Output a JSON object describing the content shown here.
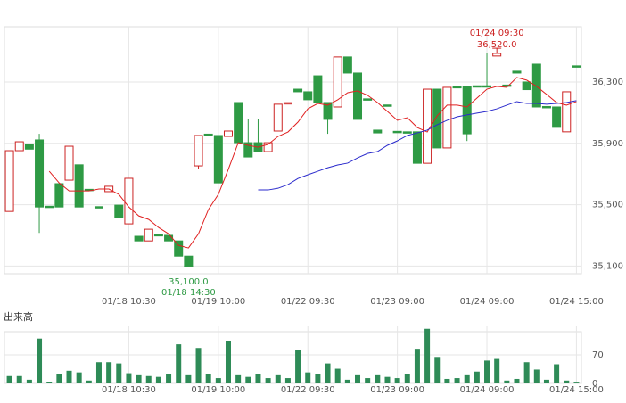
{
  "chart_data": [
    {
      "type": "candlestick",
      "categories": [
        null,
        null,
        null,
        null,
        null,
        null,
        null,
        null,
        null,
        null,
        null,
        null,
        "01/18 10:30",
        null,
        null,
        null,
        null,
        null,
        null,
        null,
        null,
        "01/19 10:00",
        null,
        null,
        null,
        null,
        null,
        null,
        null,
        null,
        "01/22 09:30",
        null,
        null,
        null,
        null,
        null,
        null,
        null,
        null,
        "01/23 09:00",
        null,
        null,
        null,
        null,
        null,
        null,
        null,
        null,
        "01/24 09:00",
        null,
        null,
        null,
        null,
        null,
        null,
        null,
        null,
        "01/24 15:00"
      ],
      "open": [
        35456,
        35852,
        35890,
        35922,
        35490,
        35637,
        35660,
        35760,
        35600,
        35487,
        35585,
        35497,
        35375,
        35294,
        35264,
        35305,
        35300,
        35264,
        35165,
        35753,
        35960,
        35951,
        35945,
        36166,
        35904,
        35904,
        35846,
        35980,
        36160,
        36253,
        36236,
        36340,
        36166,
        36137,
        36463,
        36358,
        36190,
        35986,
        36150,
        35978,
        35975,
        35975,
        35770,
        36253,
        35870,
        36270,
        36271,
        36275,
        36275,
        36469,
        36280,
        36370,
        36300,
        36416,
        36140,
        36137,
        35975,
        36405
      ],
      "high": [
        35852,
        35910,
        35890,
        35962,
        35490,
        35637,
        35881,
        35760,
        35600,
        35487,
        35620,
        35497,
        35672,
        35294,
        35340,
        35305,
        35300,
        35264,
        35165,
        35951,
        35960,
        35951,
        35980,
        36166,
        36060,
        36060,
        35904,
        36155,
        36165,
        36253,
        36236,
        36340,
        36166,
        36463,
        36463,
        36358,
        36190,
        35986,
        36150,
        35978,
        35975,
        35975,
        36253,
        36253,
        36265,
        36270,
        36271,
        36275,
        36486,
        36520,
        36280,
        36370,
        36300,
        36416,
        36140,
        36137,
        36236,
        36405
      ],
      "low": [
        35456,
        35852,
        35862,
        35316,
        35485,
        35485,
        35660,
        35485,
        35595,
        35480,
        35585,
        35415,
        35375,
        35264,
        35264,
        35300,
        35264,
        35165,
        35100,
        35730,
        35955,
        35642,
        35945,
        35904,
        35811,
        35846,
        35846,
        35980,
        36160,
        36236,
        36184,
        36166,
        35962,
        36137,
        36358,
        36056,
        36184,
        35968,
        36145,
        35972,
        35970,
        35770,
        35770,
        35870,
        35870,
        36265,
        35915,
        36270,
        36270,
        36469,
        36275,
        36358,
        36250,
        36137,
        36135,
        36004,
        35975,
        36400
      ],
      "close": [
        35852,
        35910,
        35862,
        35485,
        35485,
        35485,
        35881,
        35485,
        35595,
        35480,
        35620,
        35415,
        35672,
        35264,
        35340,
        35300,
        35264,
        35165,
        35100,
        35951,
        35955,
        35642,
        35980,
        35904,
        35811,
        35846,
        35904,
        36155,
        36165,
        36236,
        36184,
        36166,
        36056,
        36463,
        36358,
        36056,
        36184,
        35968,
        36145,
        35972,
        35970,
        35770,
        36253,
        35870,
        36265,
        36265,
        35962,
        36270,
        36270,
        36486,
        36275,
        36358,
        36250,
        36137,
        36135,
        36004,
        36236,
        36400
      ],
      "up_color": "#cc2222",
      "down_color": "#2e9a44",
      "lines": [
        {
          "color": "#e02020",
          "values": [
            null,
            null,
            null,
            null,
            35718,
            35642,
            35590,
            35590,
            35590,
            35602,
            35602,
            35567,
            35485,
            35427,
            35404,
            35351,
            35310,
            35235,
            35218,
            35310,
            35468,
            35567,
            35730,
            35904,
            35887,
            35875,
            35893,
            35945,
            35974,
            36038,
            36125,
            36160,
            36149,
            36184,
            36230,
            36242,
            36213,
            36166,
            36108,
            36050,
            36067,
            36003,
            35974,
            36079,
            36149,
            36149,
            36137,
            36195,
            36253,
            36271,
            36265,
            36329,
            36312,
            36271,
            36219,
            36166,
            36149,
            36172
          ]
        },
        {
          "color": "#2a2acc",
          "values": [
            null,
            null,
            null,
            null,
            null,
            null,
            null,
            null,
            null,
            null,
            null,
            null,
            null,
            null,
            null,
            null,
            null,
            null,
            null,
            null,
            null,
            null,
            null,
            null,
            null,
            35596,
            35596,
            35607,
            35631,
            35671,
            35695,
            35718,
            35741,
            35759,
            35771,
            35805,
            35834,
            35846,
            35887,
            35916,
            35951,
            35968,
            35986,
            36021,
            36050,
            36073,
            36085,
            36097,
            36108,
            36125,
            36149,
            36172,
            36160,
            36160,
            36155,
            36160,
            36166,
            36178
          ]
        }
      ],
      "ylim": [
        35050,
        36660
      ],
      "yticks": [
        {
          "value": 35100,
          "label": "35,100"
        },
        {
          "value": 35500,
          "label": "35,500"
        },
        {
          "value": 35900,
          "label": "35,900"
        },
        {
          "value": 36300,
          "label": "36,300"
        }
      ],
      "grid": true,
      "high_label": {
        "value": 36520,
        "label": "36,520.0"
      },
      "high_time": "01/24 09:30",
      "low_label": {
        "value": 35100,
        "label": "35,100.0"
      },
      "low_time": "01/18 14:30"
    },
    {
      "type": "bar",
      "title": "出来高",
      "categories": [
        null,
        null,
        null,
        null,
        null,
        null,
        null,
        null,
        null,
        null,
        null,
        null,
        "01/18 10:30",
        null,
        null,
        null,
        null,
        null,
        null,
        null,
        null,
        "01/19 10:00",
        null,
        null,
        null,
        null,
        null,
        null,
        null,
        null,
        "01/22 09:30",
        null,
        null,
        null,
        null,
        null,
        null,
        null,
        null,
        "01/23 09:00",
        null,
        null,
        null,
        null,
        null,
        null,
        null,
        null,
        "01/24 09:00",
        null,
        null,
        null,
        null,
        null,
        null,
        null,
        null,
        "01/24 15:00"
      ],
      "values": [
        18,
        18,
        9,
        110,
        4,
        22,
        31,
        27,
        7,
        52,
        52,
        49,
        25,
        20,
        18,
        16,
        22,
        96,
        20,
        87,
        22,
        13,
        103,
        20,
        16,
        22,
        13,
        20,
        13,
        81,
        27,
        22,
        49,
        36,
        9,
        20,
        13,
        20,
        16,
        13,
        22,
        85,
        134,
        65,
        11,
        13,
        20,
        29,
        56,
        60,
        7,
        11,
        52,
        34,
        9,
        47,
        7,
        2
      ],
      "color": "#2e8b57",
      "ylim": [
        0,
        140
      ],
      "yticks": [
        0,
        70
      ],
      "grid": true
    }
  ]
}
